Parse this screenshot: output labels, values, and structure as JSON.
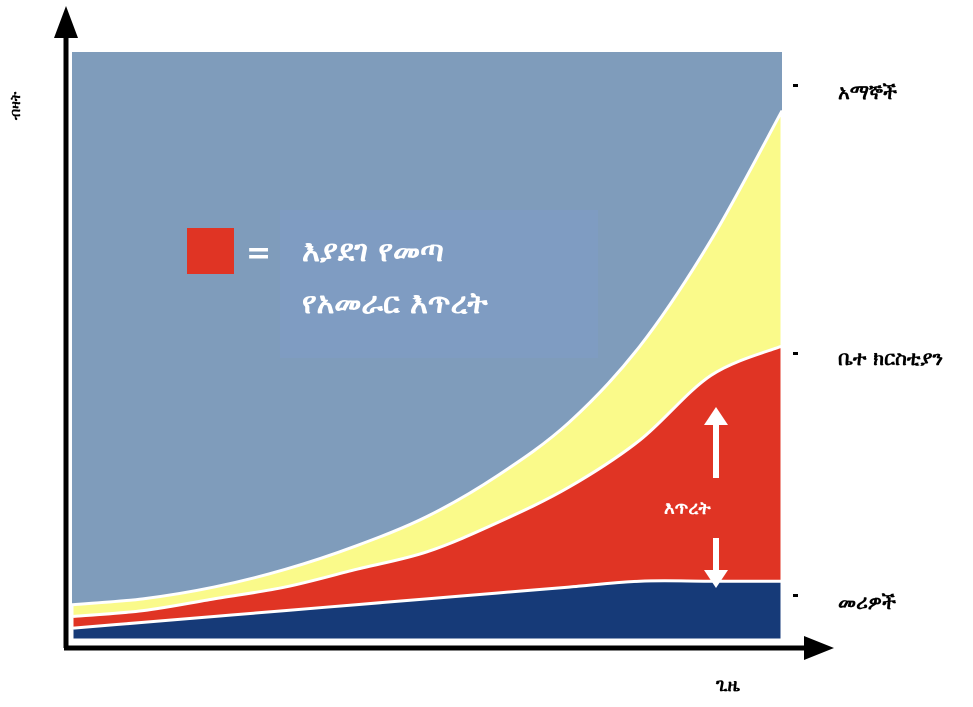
{
  "chart_data": {
    "type": "area",
    "xlabel": "ጊዜ",
    "ylabel": "ብዛት",
    "x_ticks": [],
    "y_ticks": [],
    "xlim": [
      0,
      100
    ],
    "ylim": [
      0,
      100
    ],
    "x": [
      0,
      10,
      20,
      30,
      40,
      50,
      60,
      70,
      80,
      90,
      100
    ],
    "series": [
      {
        "name": "መሪዎች",
        "values": [
          2,
          3,
          4,
          5,
          6,
          7,
          8,
          9,
          10,
          10,
          10
        ],
        "color": "#163a78"
      },
      {
        "name": "ቤተ ክርስቲያን",
        "values": [
          4,
          5,
          7,
          9,
          12,
          15,
          20,
          26,
          34,
          45,
          50
        ],
        "color": "#e03424"
      },
      {
        "name": "አማኞች",
        "values": [
          6,
          7,
          9,
          12,
          16,
          21,
          28,
          37,
          50,
          68,
          90
        ],
        "color": "#fafa8a"
      }
    ],
    "background_color": "#7f9cbb",
    "legend": {
      "swatch_color": "#e03424",
      "equals": "=",
      "line1": "እያደገ የመጣ",
      "line2": "የአመራር እጥረት"
    },
    "gap_annotation": "እጥረት"
  }
}
